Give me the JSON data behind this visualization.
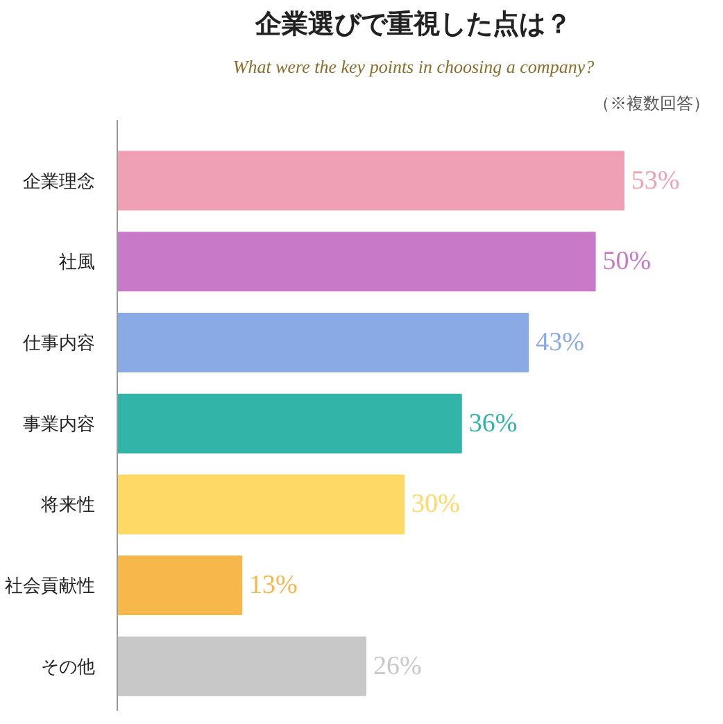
{
  "chart_data": {
    "type": "bar",
    "orientation": "horizontal",
    "title": "企業選びで重視した点は？",
    "subtitle": "What were the key points in choosing a company?",
    "annotations": [
      "（※複数回答）"
    ],
    "categories": [
      "企業理念",
      "社風",
      "仕事内容",
      "事業内容",
      "将来性",
      "社会貢献性",
      "その他"
    ],
    "values": [
      53,
      50,
      43,
      36,
      30,
      13,
      26
    ],
    "colors": [
      "#f0a0b4",
      "#c87ac8",
      "#8aaae6",
      "#32b4a8",
      "#ffd966",
      "#f6b84a",
      "#c8c8c8"
    ],
    "value_labels": [
      "53%",
      "50%",
      "43%",
      "36%",
      "30%",
      "13%",
      "26%"
    ],
    "grid": false
  }
}
